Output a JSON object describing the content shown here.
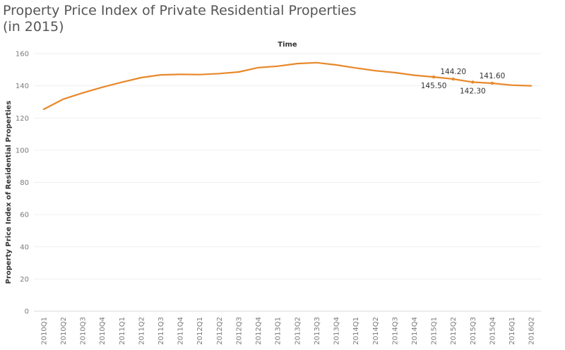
{
  "chart_data": {
    "type": "line",
    "title_lines": [
      "Property Price Index of Private Residential Properties",
      "(in 2015)"
    ],
    "xlabel": "Time",
    "ylabel": "Property Price Index of Residential Properties",
    "ylim": [
      0,
      160
    ],
    "yticks": [
      0,
      20,
      40,
      60,
      80,
      100,
      120,
      140,
      160
    ],
    "grid": true,
    "legend": "none",
    "color": "#e8882a",
    "categories": [
      "2010Q1",
      "2010Q2",
      "2010Q3",
      "2010Q4",
      "2011Q1",
      "2011Q2",
      "2011Q3",
      "2011Q4",
      "2012Q1",
      "2012Q2",
      "2012Q3",
      "2012Q4",
      "2013Q1",
      "2013Q2",
      "2013Q3",
      "2013Q4",
      "2014Q1",
      "2014Q2",
      "2014Q3",
      "2014Q4",
      "2015Q1",
      "2015Q2",
      "2015Q3",
      "2015Q4",
      "2016Q1",
      "2016Q2"
    ],
    "values": [
      125.4,
      131.7,
      135.6,
      139.1,
      142.2,
      145.1,
      146.8,
      147.1,
      147.0,
      147.6,
      148.6,
      151.3,
      152.2,
      153.8,
      154.4,
      153.0,
      151.1,
      149.4,
      148.2,
      146.6,
      145.5,
      144.2,
      142.3,
      141.6,
      140.4,
      140.0
    ],
    "data_labels": [
      {
        "category": "2015Q1",
        "text": "145.50",
        "position": "below"
      },
      {
        "category": "2015Q2",
        "text": "144.20",
        "position": "above"
      },
      {
        "category": "2015Q3",
        "text": "142.30",
        "position": "below"
      },
      {
        "category": "2015Q4",
        "text": "141.60",
        "position": "above"
      }
    ]
  }
}
